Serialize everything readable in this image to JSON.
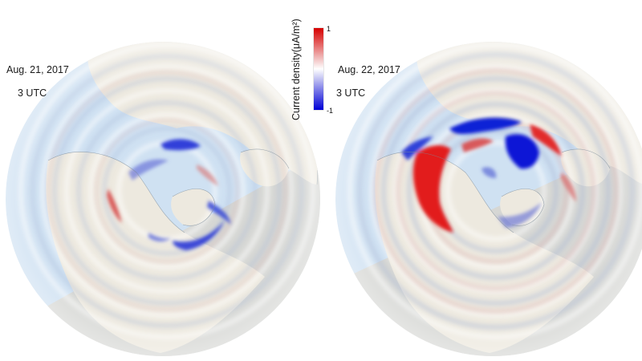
{
  "panels": [
    {
      "date": "Aug. 21, 2017",
      "time": "3 UTC"
    },
    {
      "date": "Aug. 22, 2017",
      "time": "3 UTC"
    }
  ],
  "colorbar": {
    "title": "Current density(μA/m²)",
    "max_label": "1",
    "min_label": "-1",
    "colors": {
      "positive": "#d60000",
      "zero": "#ffffff",
      "negative": "#0000d6"
    }
  },
  "map_colors": {
    "ocean": "#cfe1f2",
    "land": "#ede9df",
    "night_shade": "#d9d3c7",
    "coast": "#7a8a99"
  }
}
